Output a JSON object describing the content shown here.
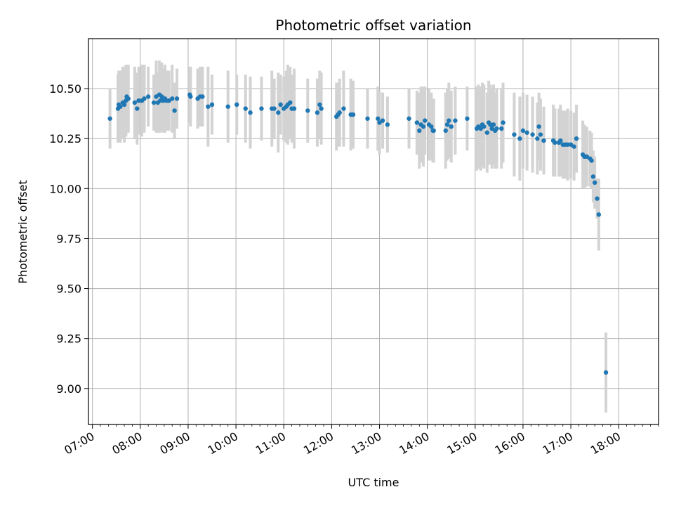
{
  "chart_data": {
    "type": "scatter",
    "title": "Photometric offset variation",
    "xlabel": "UTC time",
    "ylabel": "Photometric offset",
    "x_ticks": [
      "07:00",
      "08:00",
      "09:00",
      "10:00",
      "11:00",
      "12:00",
      "13:00",
      "14:00",
      "15:00",
      "16:00",
      "17:00",
      "18:00"
    ],
    "y_ticks": [
      "9.00",
      "9.25",
      "9.50",
      "9.75",
      "10.00",
      "10.25",
      "10.50"
    ],
    "xlim": [
      "06:55",
      "18:50"
    ],
    "ylim": [
      8.82,
      10.75
    ],
    "grid": true,
    "colors": {
      "point": "#1f77b4",
      "errorbar": "#d3d3d3",
      "grid": "#b0b0b0"
    },
    "series": [
      {
        "points": [
          {
            "t": "07:22",
            "y": 10.35,
            "e": 0.15
          },
          {
            "t": "07:32",
            "y": 10.4,
            "e": 0.17
          },
          {
            "t": "07:33",
            "y": 10.42,
            "e": 0.17
          },
          {
            "t": "07:35",
            "y": 10.41,
            "e": 0.18
          },
          {
            "t": "07:38",
            "y": 10.43,
            "e": 0.18
          },
          {
            "t": "07:40",
            "y": 10.42,
            "e": 0.19
          },
          {
            "t": "07:42",
            "y": 10.44,
            "e": 0.18
          },
          {
            "t": "07:43",
            "y": 10.46,
            "e": 0.16
          },
          {
            "t": "07:45",
            "y": 10.45,
            "e": 0.17
          },
          {
            "t": "07:53",
            "y": 10.43,
            "e": 0.18
          },
          {
            "t": "07:56",
            "y": 10.4,
            "e": 0.18
          },
          {
            "t": "07:58",
            "y": 10.44,
            "e": 0.17
          },
          {
            "t": "08:02",
            "y": 10.44,
            "e": 0.18
          },
          {
            "t": "08:05",
            "y": 10.45,
            "e": 0.17
          },
          {
            "t": "08:10",
            "y": 10.46,
            "e": 0.15
          },
          {
            "t": "08:17",
            "y": 10.43,
            "e": 0.14
          },
          {
            "t": "08:20",
            "y": 10.46,
            "e": 0.18
          },
          {
            "t": "08:22",
            "y": 10.43,
            "e": 0.15
          },
          {
            "t": "08:24",
            "y": 10.47,
            "e": 0.17
          },
          {
            "t": "08:25",
            "y": 10.44,
            "e": 0.16
          },
          {
            "t": "08:27",
            "y": 10.46,
            "e": 0.17
          },
          {
            "t": "08:29",
            "y": 10.44,
            "e": 0.16
          },
          {
            "t": "08:31",
            "y": 10.45,
            "e": 0.17
          },
          {
            "t": "08:33",
            "y": 10.44,
            "e": 0.15
          },
          {
            "t": "08:36",
            "y": 10.44,
            "e": 0.15
          },
          {
            "t": "08:40",
            "y": 10.45,
            "e": 0.17
          },
          {
            "t": "08:43",
            "y": 10.39,
            "e": 0.14
          },
          {
            "t": "08:46",
            "y": 10.45,
            "e": 0.15
          },
          {
            "t": "09:02",
            "y": 10.47,
            "e": 0.14
          },
          {
            "t": "09:03",
            "y": 10.46,
            "e": 0.15
          },
          {
            "t": "09:12",
            "y": 10.45,
            "e": 0.15
          },
          {
            "t": "09:15",
            "y": 10.46,
            "e": 0.15
          },
          {
            "t": "09:18",
            "y": 10.46,
            "e": 0.15
          },
          {
            "t": "09:25",
            "y": 10.41,
            "e": 0.2
          },
          {
            "t": "09:30",
            "y": 10.42,
            "e": 0.15
          },
          {
            "t": "09:50",
            "y": 10.41,
            "e": 0.18
          },
          {
            "t": "10:01",
            "y": 10.42,
            "e": 0.15
          },
          {
            "t": "10:12",
            "y": 10.4,
            "e": 0.17
          },
          {
            "t": "10:18",
            "y": 10.38,
            "e": 0.18
          },
          {
            "t": "10:32",
            "y": 10.4,
            "e": 0.16
          },
          {
            "t": "10:45",
            "y": 10.4,
            "e": 0.19
          },
          {
            "t": "10:48",
            "y": 10.4,
            "e": 0.15
          },
          {
            "t": "10:53",
            "y": 10.38,
            "e": 0.2
          },
          {
            "t": "10:56",
            "y": 10.42,
            "e": 0.15
          },
          {
            "t": "11:00",
            "y": 10.4,
            "e": 0.16
          },
          {
            "t": "11:03",
            "y": 10.41,
            "e": 0.18
          },
          {
            "t": "11:05",
            "y": 10.42,
            "e": 0.2
          },
          {
            "t": "11:08",
            "y": 10.43,
            "e": 0.18
          },
          {
            "t": "11:10",
            "y": 10.4,
            "e": 0.17
          },
          {
            "t": "11:13",
            "y": 10.4,
            "e": 0.2
          },
          {
            "t": "11:30",
            "y": 10.39,
            "e": 0.16
          },
          {
            "t": "11:42",
            "y": 10.38,
            "e": 0.17
          },
          {
            "t": "11:45",
            "y": 10.42,
            "e": 0.17
          },
          {
            "t": "11:47",
            "y": 10.4,
            "e": 0.18
          },
          {
            "t": "12:06",
            "y": 10.36,
            "e": 0.17
          },
          {
            "t": "12:08",
            "y": 10.37,
            "e": 0.16
          },
          {
            "t": "12:10",
            "y": 10.38,
            "e": 0.17
          },
          {
            "t": "12:15",
            "y": 10.4,
            "e": 0.19
          },
          {
            "t": "12:24",
            "y": 10.37,
            "e": 0.18
          },
          {
            "t": "12:27",
            "y": 10.37,
            "e": 0.17
          },
          {
            "t": "12:45",
            "y": 10.35,
            "e": 0.15
          },
          {
            "t": "12:58",
            "y": 10.35,
            "e": 0.16
          },
          {
            "t": "13:00",
            "y": 10.33,
            "e": 0.16
          },
          {
            "t": "13:04",
            "y": 10.34,
            "e": 0.14
          },
          {
            "t": "13:10",
            "y": 10.32,
            "e": 0.14
          },
          {
            "t": "13:37",
            "y": 10.35,
            "e": 0.15
          },
          {
            "t": "13:47",
            "y": 10.33,
            "e": 0.16
          },
          {
            "t": "13:50",
            "y": 10.29,
            "e": 0.19
          },
          {
            "t": "13:52",
            "y": 10.32,
            "e": 0.19
          },
          {
            "t": "13:55",
            "y": 10.31,
            "e": 0.2
          },
          {
            "t": "13:57",
            "y": 10.34,
            "e": 0.17
          },
          {
            "t": "14:02",
            "y": 10.32,
            "e": 0.18
          },
          {
            "t": "14:05",
            "y": 10.31,
            "e": 0.17
          },
          {
            "t": "14:07",
            "y": 10.29,
            "e": 0.16
          },
          {
            "t": "14:08",
            "y": 10.29,
            "e": 0.16
          },
          {
            "t": "14:23",
            "y": 10.29,
            "e": 0.19
          },
          {
            "t": "14:25",
            "y": 10.32,
            "e": 0.18
          },
          {
            "t": "14:27",
            "y": 10.34,
            "e": 0.19
          },
          {
            "t": "14:30",
            "y": 10.31,
            "e": 0.18
          },
          {
            "t": "14:35",
            "y": 10.34,
            "e": 0.17
          },
          {
            "t": "14:50",
            "y": 10.35,
            "e": 0.16
          },
          {
            "t": "15:02",
            "y": 10.3,
            "e": 0.21
          },
          {
            "t": "15:04",
            "y": 10.31,
            "e": 0.21
          },
          {
            "t": "15:07",
            "y": 10.3,
            "e": 0.21
          },
          {
            "t": "15:09",
            "y": 10.32,
            "e": 0.21
          },
          {
            "t": "15:11",
            "y": 10.31,
            "e": 0.21
          },
          {
            "t": "15:15",
            "y": 10.28,
            "e": 0.2
          },
          {
            "t": "15:17",
            "y": 10.33,
            "e": 0.21
          },
          {
            "t": "15:19",
            "y": 10.32,
            "e": 0.2
          },
          {
            "t": "15:21",
            "y": 10.3,
            "e": 0.2
          },
          {
            "t": "15:23",
            "y": 10.32,
            "e": 0.2
          },
          {
            "t": "15:25",
            "y": 10.29,
            "e": 0.19
          },
          {
            "t": "15:27",
            "y": 10.3,
            "e": 0.2
          },
          {
            "t": "15:33",
            "y": 10.3,
            "e": 0.2
          },
          {
            "t": "15:35",
            "y": 10.33,
            "e": 0.2
          },
          {
            "t": "15:49",
            "y": 10.27,
            "e": 0.21
          },
          {
            "t": "15:56",
            "y": 10.25,
            "e": 0.21
          },
          {
            "t": "16:00",
            "y": 10.29,
            "e": 0.19
          },
          {
            "t": "16:05",
            "y": 10.28,
            "e": 0.19
          },
          {
            "t": "16:12",
            "y": 10.27,
            "e": 0.19
          },
          {
            "t": "16:18",
            "y": 10.25,
            "e": 0.18
          },
          {
            "t": "16:20",
            "y": 10.31,
            "e": 0.17
          },
          {
            "t": "16:22",
            "y": 10.27,
            "e": 0.18
          },
          {
            "t": "16:26",
            "y": 10.24,
            "e": 0.17
          },
          {
            "t": "16:38",
            "y": 10.24,
            "e": 0.18
          },
          {
            "t": "16:40",
            "y": 10.23,
            "e": 0.17
          },
          {
            "t": "16:45",
            "y": 10.23,
            "e": 0.17
          },
          {
            "t": "16:47",
            "y": 10.24,
            "e": 0.18
          },
          {
            "t": "16:50",
            "y": 10.22,
            "e": 0.17
          },
          {
            "t": "16:53",
            "y": 10.22,
            "e": 0.17
          },
          {
            "t": "16:56",
            "y": 10.22,
            "e": 0.18
          },
          {
            "t": "17:00",
            "y": 10.22,
            "e": 0.17
          },
          {
            "t": "17:04",
            "y": 10.21,
            "e": 0.17
          },
          {
            "t": "17:07",
            "y": 10.25,
            "e": 0.17
          },
          {
            "t": "17:15",
            "y": 10.17,
            "e": 0.17
          },
          {
            "t": "17:17",
            "y": 10.16,
            "e": 0.16
          },
          {
            "t": "17:20",
            "y": 10.16,
            "e": 0.15
          },
          {
            "t": "17:24",
            "y": 10.15,
            "e": 0.14
          },
          {
            "t": "17:26",
            "y": 10.14,
            "e": 0.14
          },
          {
            "t": "17:28",
            "y": 10.06,
            "e": 0.13
          },
          {
            "t": "17:30",
            "y": 10.03,
            "e": 0.13
          },
          {
            "t": "17:33",
            "y": 9.95,
            "e": 0.1
          },
          {
            "t": "17:35",
            "y": 9.87,
            "e": 0.18
          },
          {
            "t": "17:44",
            "y": 9.08,
            "e": 0.2
          }
        ]
      }
    ]
  }
}
